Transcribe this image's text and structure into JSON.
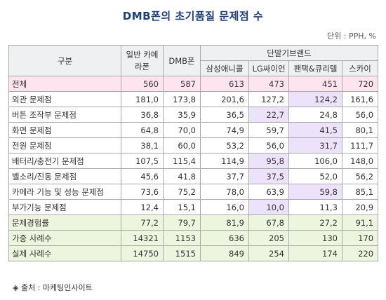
{
  "title": "DMB폰의 초기품질 문제점 수",
  "unit": "단위 : PPH, %",
  "source": "◈ 출처 : 마케팅인사이트",
  "chart_data": {
    "type": "table",
    "header": {
      "category": "구분",
      "group": "단말기브랜드",
      "columns": [
        "일반 카메라폰",
        "DMB폰",
        "삼성애니콜",
        "LG싸이언",
        "팬택&큐리텔",
        "스카이"
      ]
    },
    "rows": [
      {
        "label": "전체",
        "values": [
          "560",
          "587",
          "613",
          "473",
          "451",
          "720"
        ],
        "style": "pink",
        "highlight": -1
      },
      {
        "label": "외관 문제점",
        "values": [
          "181,0",
          "173,8",
          "201,6",
          "127,2",
          "124,2",
          "161,6"
        ],
        "style": "",
        "highlight": 4
      },
      {
        "label": "버튼 조작부 문제점",
        "values": [
          "36,8",
          "35,9",
          "36,5",
          "22,7",
          "24,8",
          "56,0"
        ],
        "style": "",
        "highlight": 3
      },
      {
        "label": "화면 문제점",
        "values": [
          "64,8",
          "70,0",
          "74,9",
          "59,7",
          "41,5",
          "80,1"
        ],
        "style": "",
        "highlight": 4
      },
      {
        "label": "전원 문제점",
        "values": [
          "38,1",
          "60,0",
          "53,2",
          "56,0",
          "31,7",
          "111,7"
        ],
        "style": "",
        "highlight": 4
      },
      {
        "label": "배터리/충전기 문제점",
        "values": [
          "107,5",
          "115,4",
          "114,9",
          "95,8",
          "106,0",
          "148,0"
        ],
        "style": "",
        "highlight": 3
      },
      {
        "label": "벨소리/진동 문제점",
        "values": [
          "45,6",
          "41,8",
          "37,7",
          "37,5",
          "52,0",
          "56,2"
        ],
        "style": "",
        "highlight": 3
      },
      {
        "label": "카메라 기능 및 성능 문제점",
        "values": [
          "73,6",
          "75,2",
          "78,0",
          "63,9",
          "59,8",
          "85,1"
        ],
        "style": "",
        "highlight": 4
      },
      {
        "label": "부가기능 문제점",
        "values": [
          "12,4",
          "15,1",
          "16,0",
          "10,0",
          "11,3",
          "20,9"
        ],
        "style": "",
        "highlight": 3
      },
      {
        "label": "문제경험률",
        "values": [
          "77,2",
          "79,7",
          "81,9",
          "67,8",
          "27,2",
          "91,1"
        ],
        "style": "green",
        "highlight": -1
      },
      {
        "label": "가중 사례수",
        "values": [
          "14321",
          "1153",
          "636",
          "205",
          "130",
          "170"
        ],
        "style": "green",
        "highlight": -1
      },
      {
        "label": "실제 사례수",
        "values": [
          "14750",
          "1515",
          "849",
          "254",
          "174",
          "220"
        ],
        "style": "green",
        "highlight": -1
      }
    ],
    "colors": {
      "total_row": "#fde4ef",
      "bottom_rows": "#eef5df",
      "best_cell": "#ece3fb",
      "header": "#eef0f2",
      "title": "#1f3e78"
    }
  }
}
